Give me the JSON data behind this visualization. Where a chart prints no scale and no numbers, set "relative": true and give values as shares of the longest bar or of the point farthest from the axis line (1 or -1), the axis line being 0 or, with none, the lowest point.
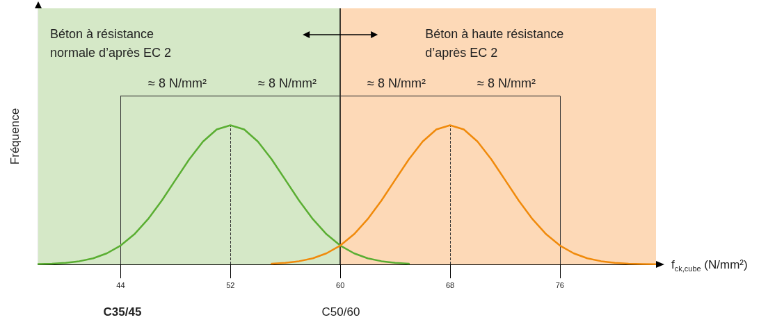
{
  "chart_data": {
    "type": "line",
    "relative": true,
    "xlabel": "f$_{ck,cube}$ (N/mm²)",
    "ylabel": "Fréquence",
    "xlim": [
      38,
      83
    ],
    "xticks": [
      44,
      52,
      60,
      68,
      76
    ],
    "marker": "none",
    "line_style": "solid",
    "series": [
      {
        "color": "#5aae32",
        "x": [
          38,
          39,
          40,
          41,
          42,
          43,
          44,
          45,
          46,
          47,
          48,
          49,
          50,
          51,
          52,
          53,
          54,
          55,
          56,
          57,
          58,
          59,
          60,
          61,
          62,
          63,
          64,
          65
        ],
        "values": [
          0.002,
          0.004,
          0.009,
          0.019,
          0.036,
          0.066,
          0.112,
          0.179,
          0.269,
          0.379,
          0.502,
          0.624,
          0.729,
          0.801,
          0.826,
          0.801,
          0.729,
          0.624,
          0.502,
          0.379,
          0.269,
          0.179,
          0.112,
          0.066,
          0.036,
          0.019,
          0.009,
          0.004
        ]
      },
      {
        "color": "#f08a0b",
        "x": [
          55,
          56,
          57,
          58,
          59,
          60,
          61,
          62,
          63,
          64,
          65,
          66,
          67,
          68,
          69,
          70,
          71,
          72,
          73,
          74,
          75,
          76,
          77,
          78,
          79,
          80,
          81,
          82,
          83
        ],
        "values": [
          0.004,
          0.009,
          0.019,
          0.036,
          0.066,
          0.112,
          0.179,
          0.269,
          0.379,
          0.502,
          0.624,
          0.729,
          0.801,
          0.826,
          0.801,
          0.729,
          0.624,
          0.502,
          0.379,
          0.269,
          0.179,
          0.112,
          0.066,
          0.036,
          0.019,
          0.009,
          0.004,
          0.002,
          0.001
        ]
      },
      {
        "color": "#333333",
        "x": [
          44,
          76
        ],
        "values": [
          1,
          1
        ]
      }
    ],
    "bands": [
      {
        "axis": "x",
        "from": 38,
        "to": 60,
        "label": "Béton à résistance\nnormale d’après EC 2",
        "color": "#d5e8c7"
      },
      {
        "axis": "x",
        "from": 60,
        "to": 83,
        "label": "Béton à haute résistance\nd’après EC 2",
        "color": "#fdd9b7"
      }
    ],
    "ref_lines": [
      {
        "axis": "x",
        "value": 60,
        "color": "#000000",
        "line_style": "solid"
      },
      {
        "axis": "x",
        "value": 52,
        "color": "#333333",
        "line_style": "dashed"
      },
      {
        "axis": "x",
        "value": 68,
        "color": "#333333",
        "line_style": "dashed"
      },
      {
        "axis": "x",
        "value": 44,
        "color": "#333333",
        "line_style": "solid"
      },
      {
        "axis": "x",
        "value": 76,
        "color": "#333333",
        "line_style": "solid"
      }
    ],
    "annotations": [
      "≈ 8 N/mm²",
      "≈ 8 N/mm²",
      "≈ 8 N/mm²",
      "≈ 8 N/mm²",
      "C35/45",
      "C50/60"
    ]
  }
}
